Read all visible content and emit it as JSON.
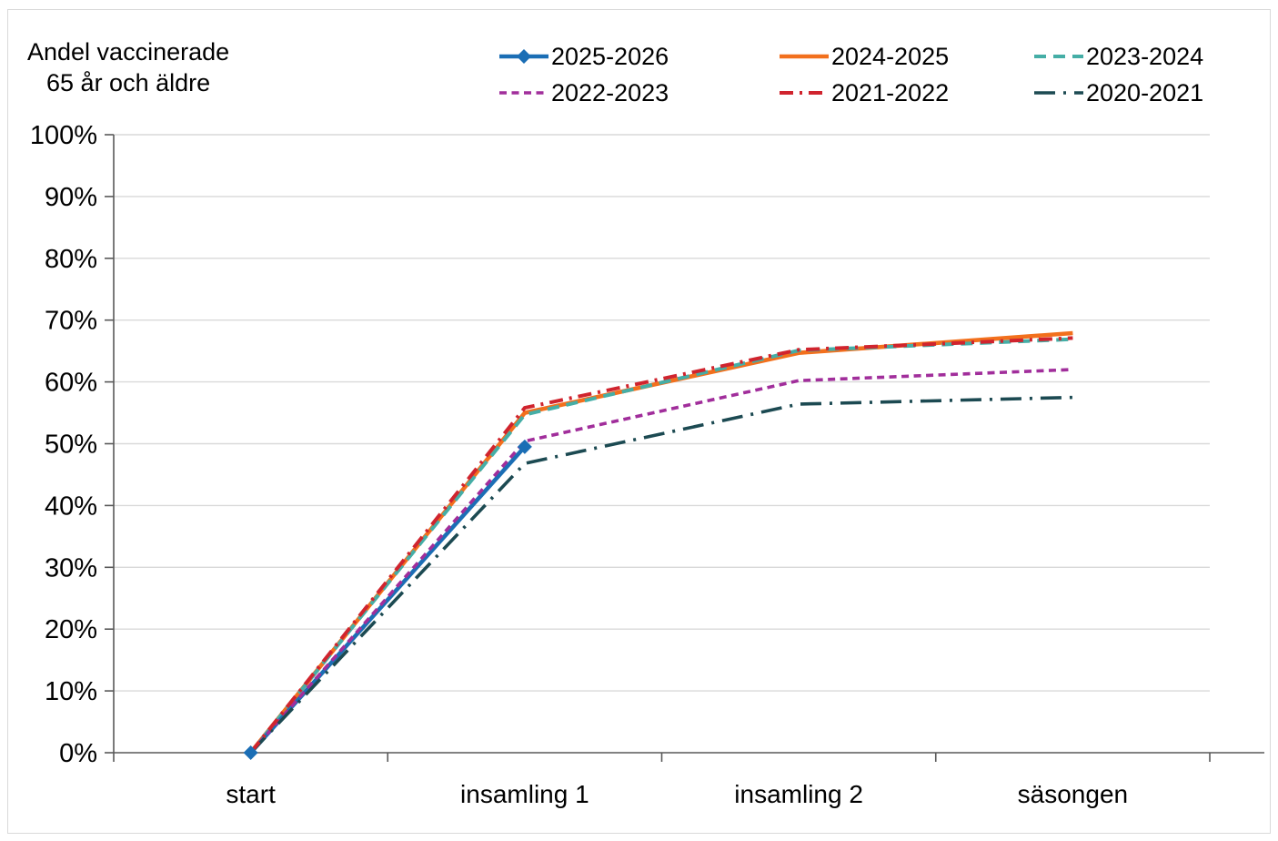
{
  "title": {
    "line1": "Andel vaccinerade",
    "line2": "65 år och äldre"
  },
  "chart_data": {
    "type": "line",
    "categories": [
      "start",
      "insamling 1",
      "insamling 2",
      "säsongen"
    ],
    "x_tick_label_names": [
      "start",
      "insamling 1",
      "insamling 2",
      "säsongen"
    ],
    "ylabel": "",
    "xlabel": "",
    "ylim": [
      0,
      100
    ],
    "y_tick_step": 10,
    "y_tick_labels": [
      "0%",
      "10%",
      "20%",
      "30%",
      "40%",
      "50%",
      "60%",
      "70%",
      "80%",
      "90%",
      "100%"
    ],
    "grid": "horizontal",
    "legend_position": "top",
    "series": [
      {
        "name": "2025-2026",
        "color": "#1b6eb5",
        "style": "solid",
        "marker": "diamond",
        "values": [
          0,
          49.5
        ]
      },
      {
        "name": "2024-2025",
        "color": "#f2701d",
        "style": "solid",
        "marker": "none",
        "values": [
          0,
          55.0,
          64.7,
          67.9
        ]
      },
      {
        "name": "2023-2024",
        "color": "#45aea6",
        "style": "dashed",
        "marker": "none",
        "values": [
          0,
          54.7,
          65.1,
          66.9
        ]
      },
      {
        "name": "2022-2023",
        "color": "#a12e9b",
        "style": "short-dash",
        "marker": "none",
        "values": [
          0,
          50.4,
          60.2,
          62.0
        ]
      },
      {
        "name": "2021-2022",
        "color": "#d0242e",
        "style": "dash-dot",
        "marker": "none",
        "values": [
          0,
          55.8,
          65.2,
          67.1
        ]
      },
      {
        "name": "2020-2021",
        "color": "#1c4a52",
        "style": "long-dash-dot",
        "marker": "none",
        "values": [
          0,
          46.8,
          56.4,
          57.5
        ]
      }
    ]
  },
  "colors": {
    "gridline": "#d9d9d9",
    "axis": "#595959",
    "text": "#000000",
    "frame_border": "#d9d9d9",
    "background": "#ffffff"
  }
}
